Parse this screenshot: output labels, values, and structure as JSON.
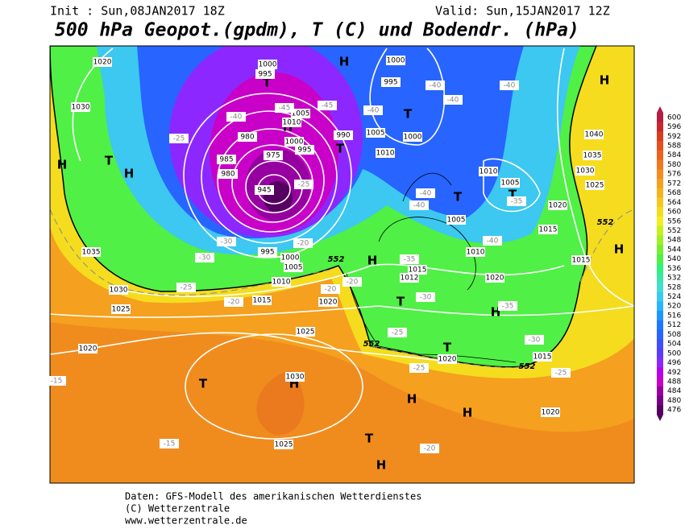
{
  "header": {
    "init": "Init : Sun,08JAN2017 18Z",
    "valid": "Valid: Sun,15JAN2017 12Z",
    "title": "500 hPa Geopot.(gpdm), T (C) und Bodendr. (hPa)"
  },
  "colorbar": {
    "levels": [
      600,
      596,
      592,
      588,
      584,
      580,
      576,
      572,
      568,
      564,
      560,
      556,
      552,
      548,
      544,
      540,
      536,
      532,
      528,
      524,
      520,
      516,
      512,
      508,
      504,
      500,
      496,
      492,
      488,
      484,
      480,
      476
    ],
    "colors": [
      "#b41e46",
      "#c8282d",
      "#dc3c1e",
      "#e6501e",
      "#eb641e",
      "#f0781e",
      "#f58c1e",
      "#f5a01e",
      "#f5b41e",
      "#f5c81e",
      "#f5dc1e",
      "#f0f01e",
      "#c8f01e",
      "#a0f028",
      "#78f032",
      "#50f046",
      "#32f078",
      "#3ce6aa",
      "#46dcd2",
      "#3cc8f0",
      "#28b4ff",
      "#1e96ff",
      "#1e78ff",
      "#2864ff",
      "#3c50ff",
      "#5a3cff",
      "#8c28ff",
      "#b400f0",
      "#c800c8",
      "#9600a0",
      "#780082",
      "#550060"
    ]
  },
  "map": {
    "highs_lows": [
      "H",
      "T",
      "H",
      "T",
      "T",
      "H",
      "T",
      "H",
      "T",
      "T",
      "H",
      "H",
      "T",
      "H",
      "T",
      "H",
      "H",
      "T",
      "H",
      "T",
      "H",
      "H"
    ],
    "isobar_labels": [
      1020,
      1030,
      1000,
      995,
      1005,
      1010,
      1000,
      995,
      990,
      980,
      985,
      980,
      975,
      945,
      1000,
      995,
      1005,
      1000,
      1010,
      1010,
      1005,
      1005,
      1010,
      1015,
      1020,
      1025,
      1030,
      1035,
      1040,
      1015,
      1020,
      1015,
      1012,
      995,
      1000,
      1005,
      1010,
      1015,
      1020,
      1035,
      1030,
      1025,
      1020,
      1025,
      1030,
      1025,
      1015,
      1020,
      1020
    ],
    "temperature_labels": [
      -40,
      -45,
      -45,
      -40,
      -40,
      -40,
      -40,
      -35,
      -40,
      -40,
      -40,
      -35,
      -30,
      -35,
      -30,
      -25,
      -25,
      -25,
      -20,
      -20,
      -20,
      -25,
      -30,
      -30,
      -25,
      -20,
      -20,
      -15,
      -15,
      -25
    ],
    "line_552_labels": [
      552,
      552,
      552,
      552
    ]
  },
  "footer": {
    "line1": "Daten: GFS-Modell des amerikanischen Wetterdienstes",
    "line2": "(C) Wetterzentrale",
    "line3": "www.wetterzentrale.de"
  }
}
